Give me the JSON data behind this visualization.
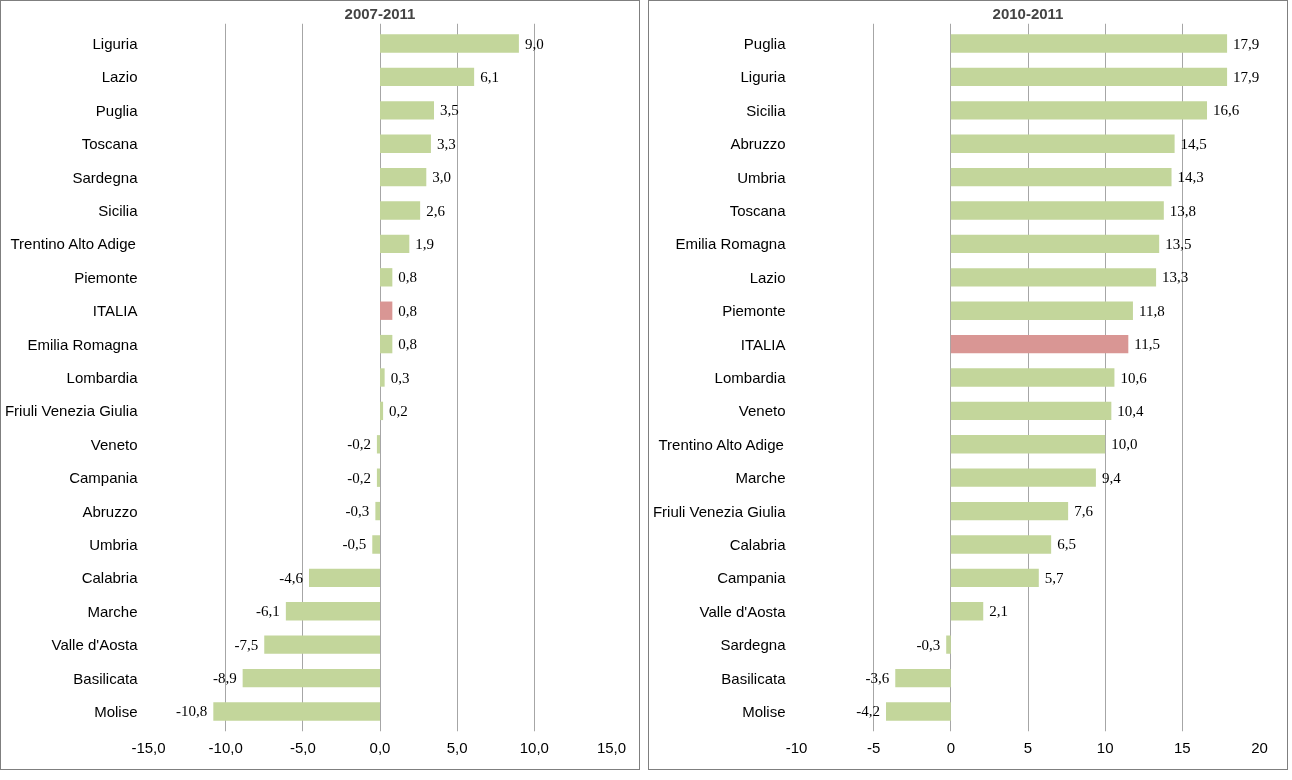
{
  "chart_data": [
    {
      "type": "bar",
      "orientation": "horizontal",
      "title": "2007-2011",
      "categories": [
        "Liguria",
        "Lazio",
        "Puglia",
        "Toscana",
        "Sardegna",
        "Sicilia",
        "Trentino Alto Adige",
        "Piemonte",
        "ITALIA",
        "Emilia Romagna",
        "Lombardia",
        "Friuli Venezia Giulia",
        "Veneto",
        "Campania",
        "Abruzzo",
        "Umbria",
        "Calabria",
        "Marche",
        "Valle d'Aosta",
        "Basilicata",
        "Molise"
      ],
      "values": [
        9.0,
        6.1,
        3.5,
        3.3,
        3.0,
        2.6,
        1.9,
        0.8,
        0.8,
        0.8,
        0.3,
        0.2,
        -0.2,
        -0.2,
        -0.3,
        -0.5,
        -4.6,
        -6.1,
        -7.5,
        -8.9,
        -10.8
      ],
      "value_labels": [
        "9,0",
        "6,1",
        "3,5",
        "3,3",
        "3,0",
        "2,6",
        "1,9",
        "0,8",
        "0,8",
        "0,8",
        "0,3",
        "0,2",
        "-0,2",
        "-0,2",
        "-0,3",
        "-0,5",
        "-4,6",
        "-6,1",
        "-7,5",
        "-8,9",
        "-10,8"
      ],
      "colors": [
        "#c3d69b",
        "#c3d69b",
        "#c3d69b",
        "#c3d69b",
        "#c3d69b",
        "#c3d69b",
        "#c3d69b",
        "#c3d69b",
        "#d99694",
        "#c3d69b",
        "#c3d69b",
        "#c3d69b",
        "#c3d69b",
        "#c3d69b",
        "#c3d69b",
        "#c3d69b",
        "#c3d69b",
        "#c3d69b",
        "#c3d69b",
        "#c3d69b",
        "#c3d69b"
      ],
      "xlim": [
        -15,
        15
      ],
      "xticks": [
        {
          "value": -15,
          "label": "-15,0"
        },
        {
          "value": -10,
          "label": "-10,0"
        },
        {
          "value": -5,
          "label": "-5,0"
        },
        {
          "value": 0,
          "label": "0,0"
        },
        {
          "value": 5,
          "label": "5,0"
        },
        {
          "value": 10,
          "label": "10,0"
        },
        {
          "value": 15,
          "label": "15,0"
        }
      ],
      "grid": "x"
    },
    {
      "type": "bar",
      "orientation": "horizontal",
      "title": "2010-2011",
      "categories": [
        "Puglia",
        "Liguria",
        "Sicilia",
        "Abruzzo",
        "Umbria",
        "Toscana",
        "Emilia Romagna",
        "Lazio",
        "Piemonte",
        "ITALIA",
        "Lombardia",
        "Veneto",
        "Trentino Alto Adige",
        "Marche",
        "Friuli Venezia Giulia",
        "Calabria",
        "Campania",
        "Valle d'Aosta",
        "Sardegna",
        "Basilicata",
        "Molise"
      ],
      "values": [
        17.9,
        17.9,
        16.6,
        14.5,
        14.3,
        13.8,
        13.5,
        13.3,
        11.8,
        11.5,
        10.6,
        10.4,
        10.0,
        9.4,
        7.6,
        6.5,
        5.7,
        2.1,
        -0.3,
        -3.6,
        -4.2
      ],
      "value_labels": [
        "17,9",
        "17,9",
        "16,6",
        "14,5",
        "14,3",
        "13,8",
        "13,5",
        "13,3",
        "11,8",
        "11,5",
        "10,6",
        "10,4",
        "10,0",
        "9,4",
        "7,6",
        "6,5",
        "5,7",
        "2,1",
        "-0,3",
        "-3,6",
        "-4,2"
      ],
      "colors": [
        "#c3d69b",
        "#c3d69b",
        "#c3d69b",
        "#c3d69b",
        "#c3d69b",
        "#c3d69b",
        "#c3d69b",
        "#c3d69b",
        "#c3d69b",
        "#d99694",
        "#c3d69b",
        "#c3d69b",
        "#c3d69b",
        "#c3d69b",
        "#c3d69b",
        "#c3d69b",
        "#c3d69b",
        "#c3d69b",
        "#c3d69b",
        "#c3d69b",
        "#c3d69b"
      ],
      "xlim": [
        -10,
        20
      ],
      "xticks": [
        -10,
        -5,
        0,
        5,
        10,
        15,
        20
      ],
      "grid": "x"
    }
  ]
}
